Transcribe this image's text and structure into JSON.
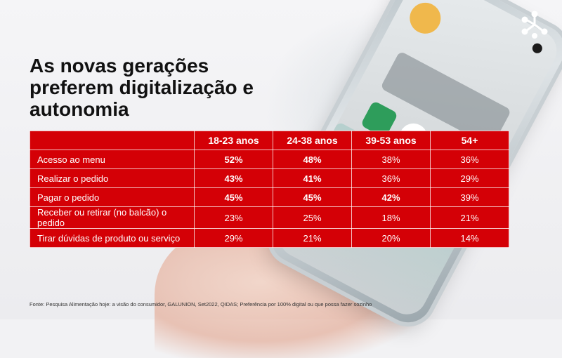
{
  "slide": {
    "title": "As novas gerações preferem digitalização e autonomia"
  },
  "table": {
    "headers": [
      "",
      "18-23 anos",
      "24-38 anos",
      "39-53 anos",
      "54+"
    ],
    "rows": [
      {
        "label": "Acesso ao menu",
        "values": [
          "52%",
          "48%",
          "38%",
          "36%"
        ],
        "bold": [
          true,
          true,
          false,
          false
        ]
      },
      {
        "label": "Realizar o pedido",
        "values": [
          "43%",
          "41%",
          "36%",
          "29%"
        ],
        "bold": [
          true,
          true,
          false,
          false
        ]
      },
      {
        "label": "Pagar o pedido",
        "values": [
          "45%",
          "45%",
          "42%",
          "39%"
        ],
        "bold": [
          true,
          true,
          true,
          false
        ]
      },
      {
        "label": "Receber ou retirar (no balcão) o pedido",
        "values": [
          "23%",
          "25%",
          "18%",
          "21%"
        ],
        "bold": [
          false,
          false,
          false,
          false
        ]
      },
      {
        "label": "Tirar dúvidas de produto ou serviço",
        "values": [
          "29%",
          "21%",
          "20%",
          "14%"
        ],
        "bold": [
          false,
          false,
          false,
          false
        ]
      }
    ]
  },
  "footer": {
    "source": "Fonte: Pesquisa Alimentação hoje: a visão do consumidor, GALUNION, Set2022, QIDAS; Preferência por 100% digital ou que possa fazer sozinho"
  },
  "colors": {
    "table_red": "#d40006",
    "title_text": "#111111"
  },
  "icons": {
    "logo": "connected-dots-logo-icon"
  }
}
